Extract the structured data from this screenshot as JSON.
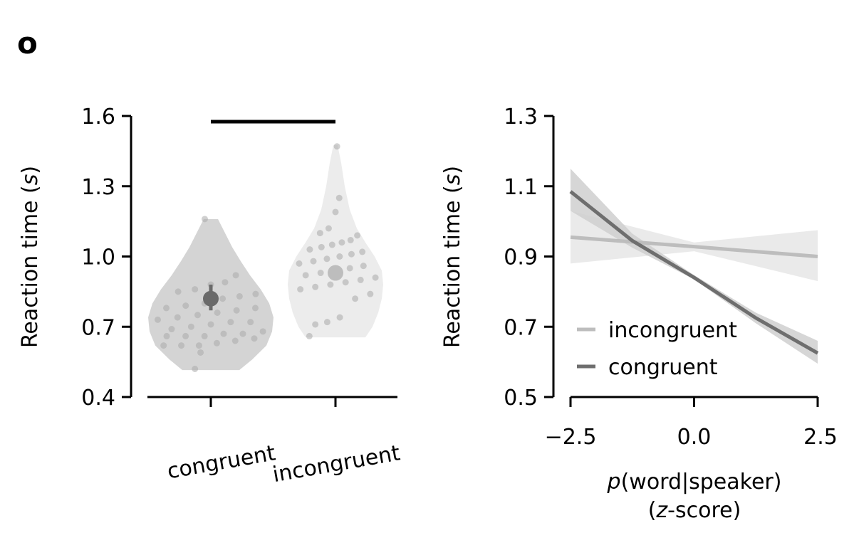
{
  "panel_label": "o",
  "chart_data": [
    {
      "type": "violin",
      "categories": [
        "congruent",
        "incongruent"
      ],
      "ylabel_main": "Reaction time (",
      "ylabel_italic": "s",
      "ylabel_end": ")",
      "ylim": [
        0.4,
        1.6
      ],
      "yticks": [
        "0.4",
        "0.7",
        "1.0",
        "1.3",
        "1.6"
      ],
      "significance_bar": true,
      "colors": {
        "congruent": "#d4d4d4",
        "incongruent": "#ececec",
        "congruent_mean": "#6a6a6a",
        "incongruent_mean": "#bdbdbd",
        "points": "#a9a9a9"
      },
      "series": [
        {
          "name": "congruent",
          "mean": 0.82,
          "ci": [
            0.77,
            0.88
          ],
          "points": [
            0.62,
            0.62,
            0.62,
            0.63,
            0.64,
            0.65,
            0.66,
            0.66,
            0.66,
            0.67,
            0.67,
            0.68,
            0.69,
            0.7,
            0.71,
            0.72,
            0.72,
            0.73,
            0.74,
            0.75,
            0.76,
            0.77,
            0.78,
            0.78,
            0.79,
            0.8,
            0.82,
            0.83,
            0.84,
            0.85,
            0.86,
            0.88,
            0.89,
            0.92,
            1.16,
            0.52,
            0.59
          ]
        },
        {
          "name": "incongruent",
          "mean": 0.93,
          "ci": [
            0.9,
            0.96
          ],
          "points": [
            0.66,
            0.71,
            0.72,
            0.74,
            0.82,
            0.84,
            0.86,
            0.87,
            0.88,
            0.89,
            0.9,
            0.91,
            0.92,
            0.93,
            0.94,
            0.95,
            0.96,
            0.97,
            0.98,
            0.99,
            1.0,
            1.01,
            1.02,
            1.03,
            1.04,
            1.05,
            1.06,
            1.07,
            1.09,
            1.1,
            1.12,
            1.19,
            1.25,
            1.47
          ]
        }
      ]
    },
    {
      "type": "line",
      "ylabel_main": "Reaction time (",
      "ylabel_italic": "s",
      "ylabel_end": ")",
      "xlabel_line1_italic": "p",
      "xlabel_line1_rest": "(word|speaker)",
      "xlabel_line2_open": "(",
      "xlabel_line2_italic": "z",
      "xlabel_line2_rest": "-score)",
      "xlim": [
        -2.5,
        2.5
      ],
      "ylim": [
        0.5,
        1.3
      ],
      "xticks": [
        "−2.5",
        "0.0",
        "2.5"
      ],
      "yticks": [
        "0.5",
        "0.7",
        "0.9",
        "1.1",
        "1.3"
      ],
      "legend_position": "lower-left",
      "series": [
        {
          "name": "incongruent",
          "color": "#bdbdbd",
          "band_color": "#e6e6e6",
          "x": [
            -2.5,
            0.0,
            2.5
          ],
          "y": [
            0.955,
            0.928,
            0.9
          ],
          "lower": [
            0.88,
            0.915,
            0.83
          ],
          "upper": [
            1.03,
            0.94,
            0.975
          ]
        },
        {
          "name": "congruent",
          "color": "#6e6e6e",
          "band_color": "#cfcfcf",
          "x": [
            -2.5,
            -1.25,
            0.0,
            1.25,
            2.5
          ],
          "y": [
            1.085,
            0.945,
            0.84,
            0.725,
            0.625
          ],
          "lower": [
            1.03,
            0.925,
            0.835,
            0.71,
            0.595
          ],
          "upper": [
            1.15,
            0.965,
            0.847,
            0.74,
            0.66
          ]
        }
      ]
    }
  ]
}
